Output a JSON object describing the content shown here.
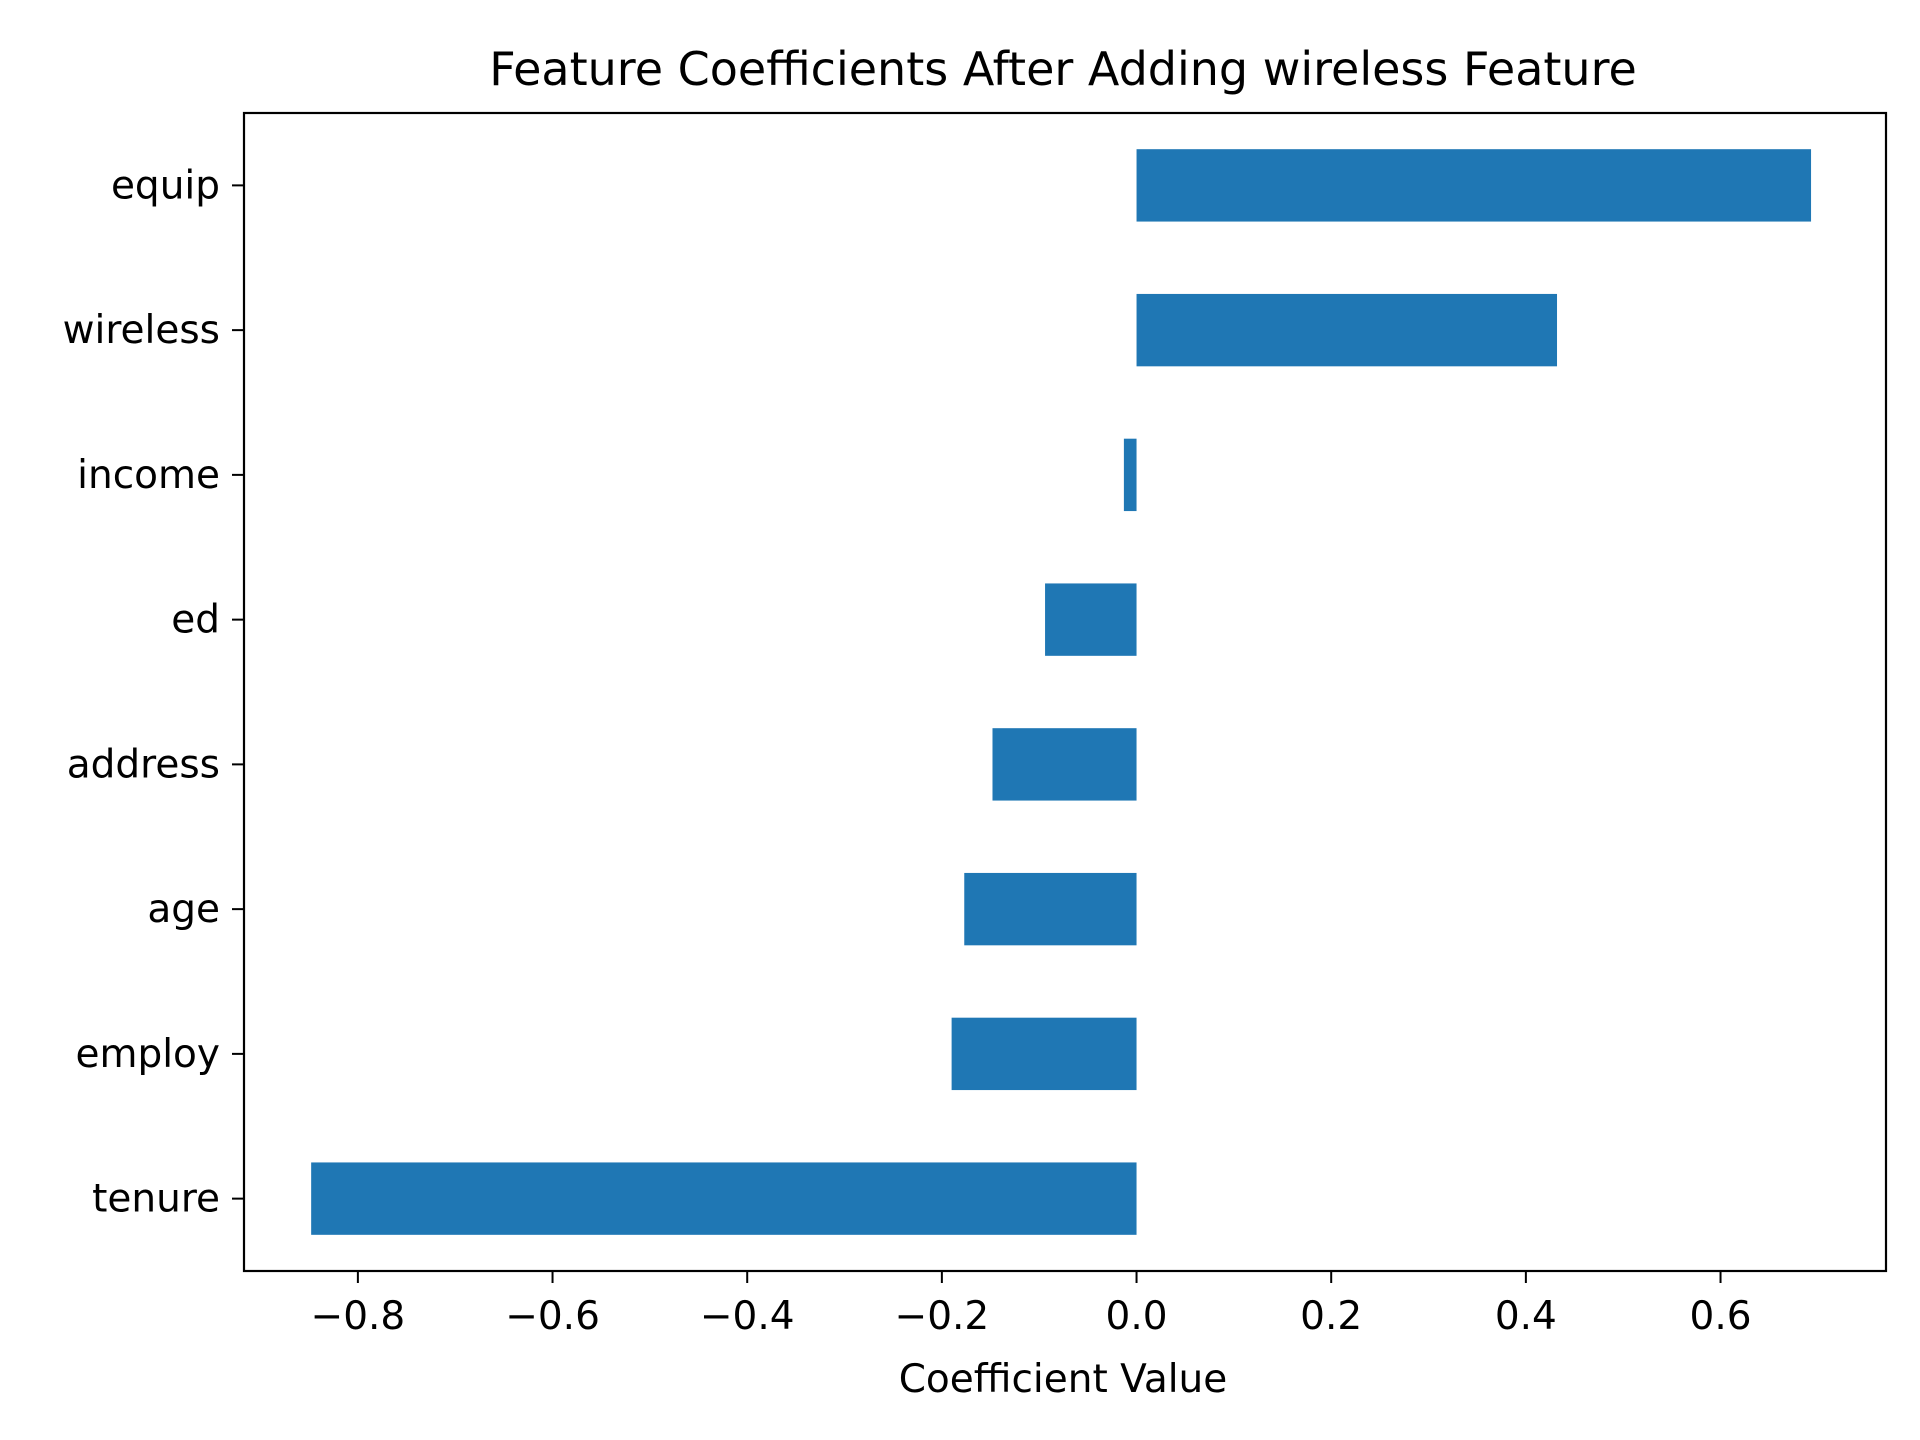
{
  "chart_data": {
    "type": "bar",
    "orientation": "horizontal",
    "title": "Feature Coefficients After Adding wireless Feature",
    "xlabel": "Coefficient Value",
    "ylabel": "",
    "categories": [
      "equip",
      "wireless",
      "income",
      "ed",
      "address",
      "age",
      "employ",
      "tenure"
    ],
    "values": [
      0.693,
      0.432,
      -0.013,
      -0.094,
      -0.148,
      -0.177,
      -0.19,
      -0.848
    ],
    "xlim": [
      -0.917,
      0.77
    ],
    "xticks": [
      -0.8,
      -0.6,
      -0.4,
      -0.2,
      0.0,
      0.2,
      0.4,
      0.6
    ],
    "xtick_labels": [
      "−0.8",
      "−0.6",
      "−0.4",
      "−0.2",
      "0.0",
      "0.2",
      "0.4",
      "0.6"
    ],
    "grid": false,
    "legend": "none",
    "bar_color": "#1f77b4"
  }
}
